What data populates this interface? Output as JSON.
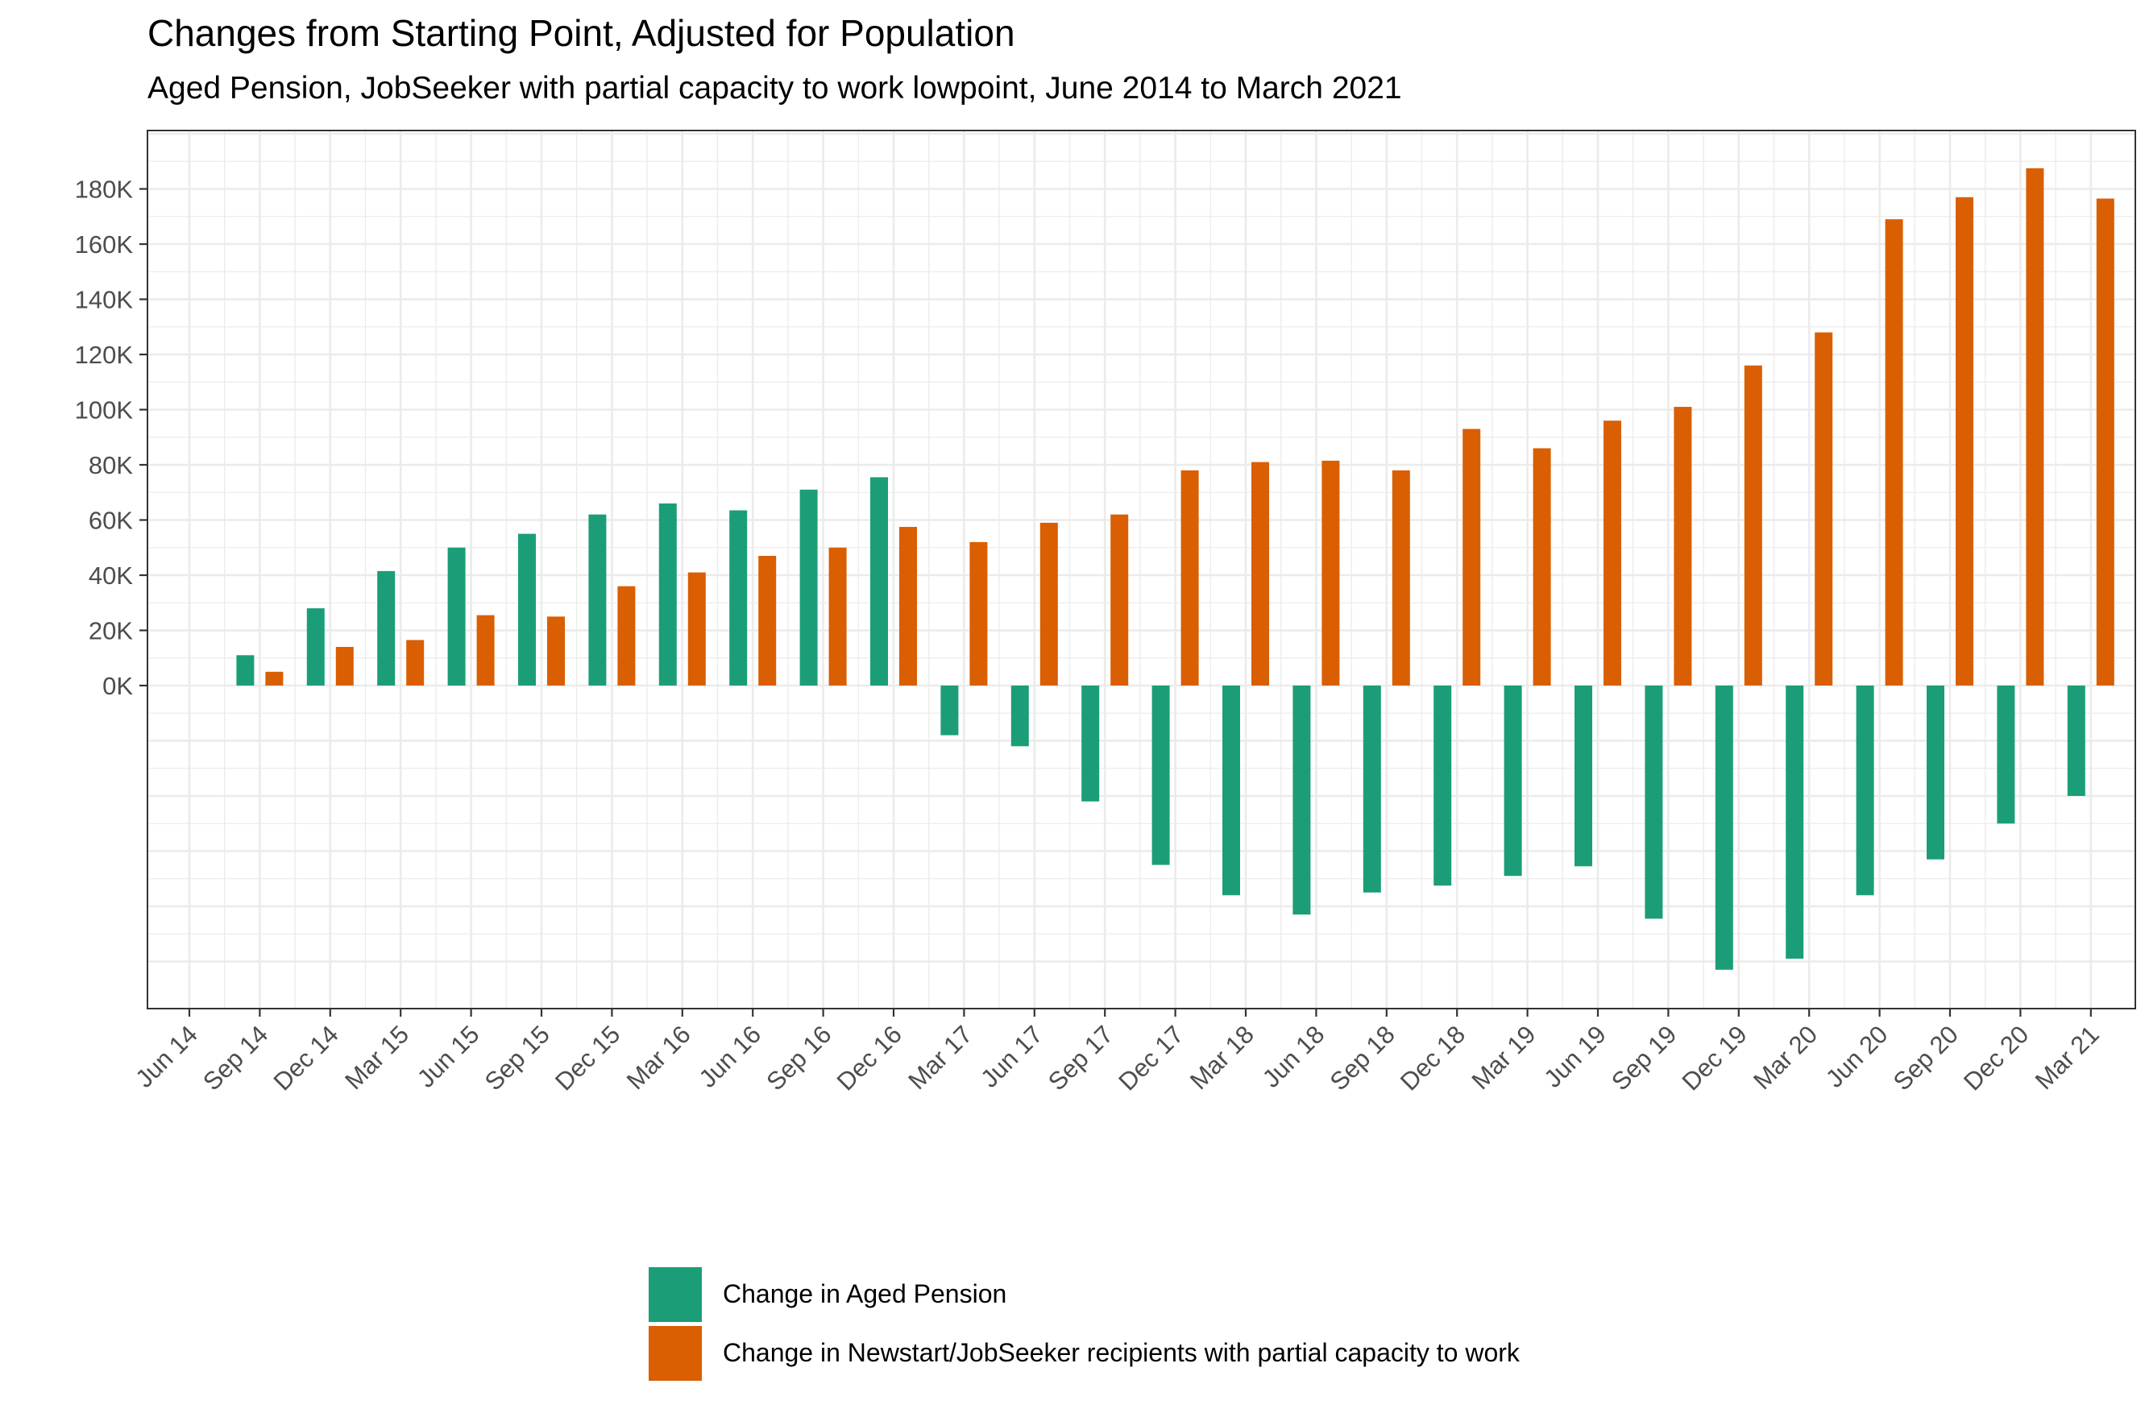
{
  "header": {
    "title": "Changes from Starting Point, Adjusted for Population",
    "subtitle": "Aged Pension, JobSeeker with partial capacity to work lowpoint, June 2014 to March 2021"
  },
  "colors": {
    "aged_pension": "#1b9e77",
    "jobseeker": "#d95f02",
    "grid": "#ebebeb",
    "border": "#333333"
  },
  "chart_data": {
    "type": "bar",
    "title": "Changes from Starting Point, Adjusted for Population",
    "subtitle": "Aged Pension, JobSeeker with partial capacity to work lowpoint, June 2014 to March 2021",
    "xlabel": "",
    "ylabel": "",
    "categories": [
      "Jun 14",
      "Sep 14",
      "Dec 14",
      "Mar 15",
      "Jun 15",
      "Sep 15",
      "Dec 15",
      "Mar 16",
      "Jun 16",
      "Sep 16",
      "Dec 16",
      "Mar 17",
      "Jun 17",
      "Sep 17",
      "Dec 17",
      "Mar 18",
      "Jun 18",
      "Sep 18",
      "Dec 18",
      "Mar 19",
      "Jun 19",
      "Sep 19",
      "Dec 19",
      "Mar 20",
      "Jun 20",
      "Sep 20",
      "Dec 20",
      "Mar 21"
    ],
    "series": [
      {
        "name": "Change in Aged Pension",
        "values": [
          0,
          11000,
          28000,
          41500,
          50000,
          55000,
          62000,
          66000,
          63500,
          71000,
          75500,
          -18000,
          -22000,
          -42000,
          -65000,
          -76000,
          -83000,
          -75000,
          -72500,
          -69000,
          -65500,
          -84500,
          -103000,
          -99000,
          -76000,
          -63000,
          -50000,
          -40000
        ]
      },
      {
        "name": "Change in Newstart/JobSeeker recipients with partial capacity to work",
        "values": [
          0,
          5000,
          14000,
          16500,
          25500,
          25000,
          36000,
          41000,
          47000,
          50000,
          57500,
          52000,
          59000,
          62000,
          78000,
          81000,
          81500,
          78000,
          93000,
          86000,
          96000,
          101000,
          116000,
          128000,
          169000,
          177000,
          187500,
          176500
        ]
      }
    ],
    "yticks": [
      "0K",
      "20K",
      "40K",
      "60K",
      "80K",
      "100K",
      "120K",
      "140K",
      "160K",
      "180K"
    ],
    "ylim": [
      -118000,
      202000
    ],
    "grid": true,
    "legend": "bottom"
  },
  "legend": {
    "items": [
      {
        "label": "Change in Aged Pension"
      },
      {
        "label": "Change in Newstart/JobSeeker recipients with partial capacity to work"
      }
    ]
  }
}
